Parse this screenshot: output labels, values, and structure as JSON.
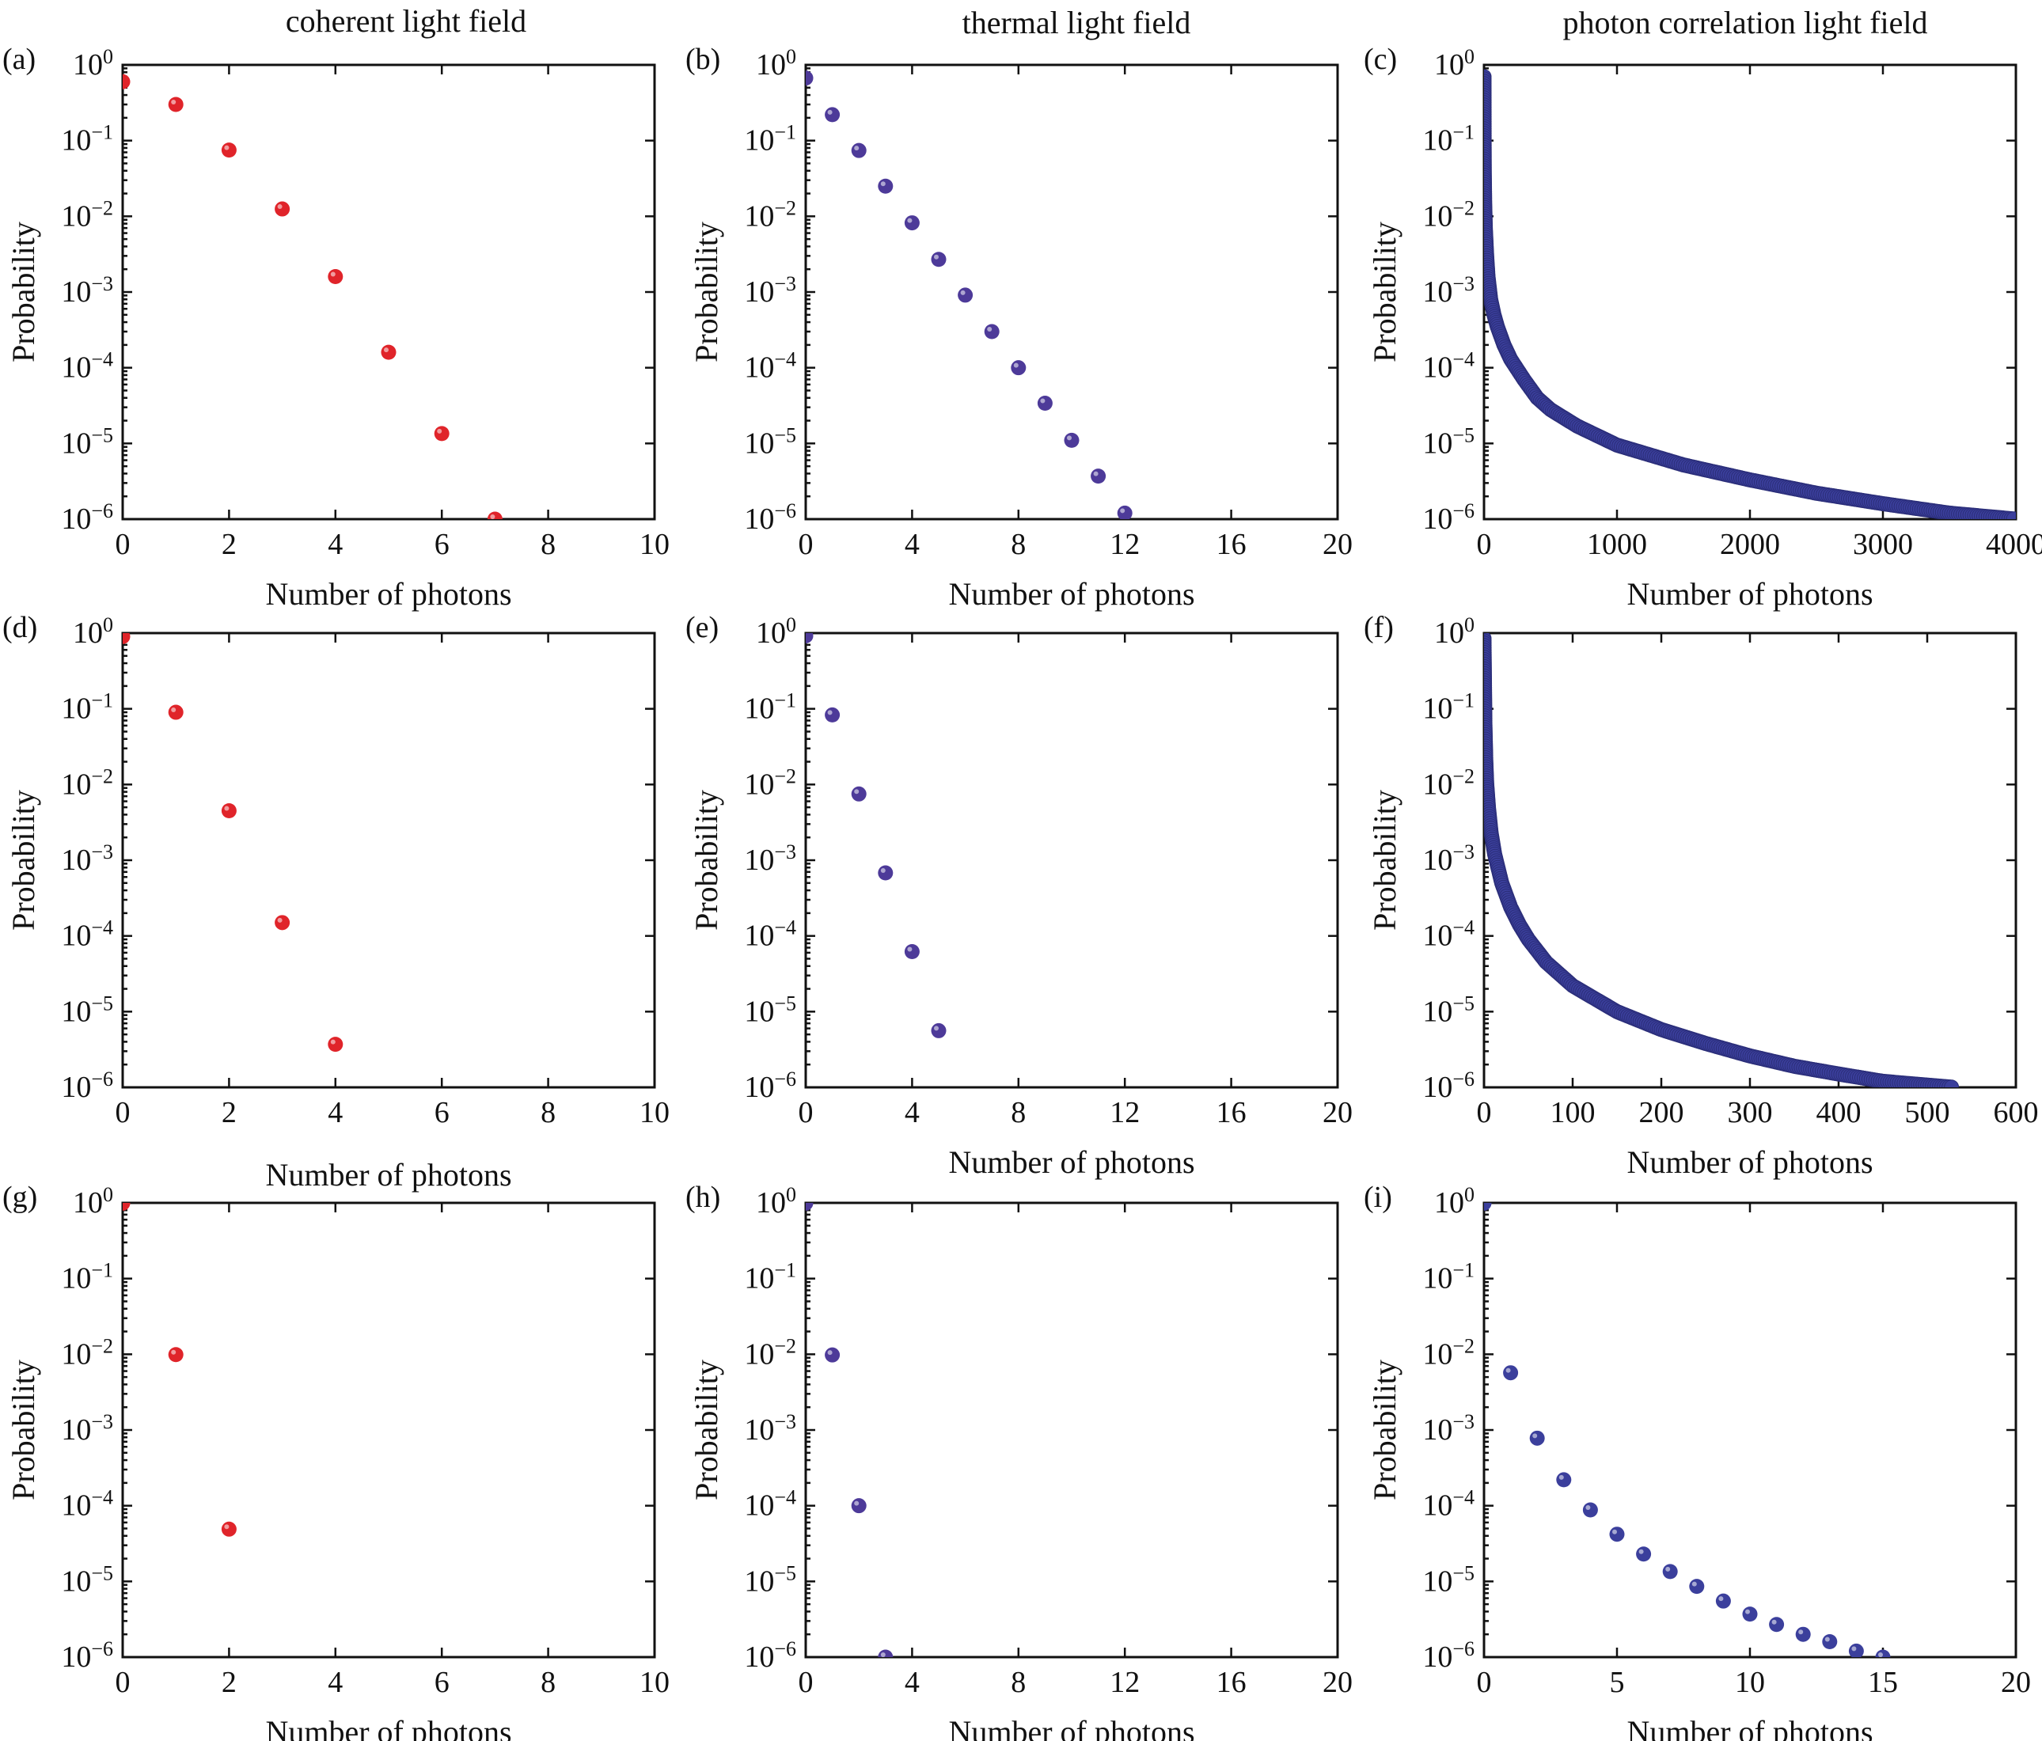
{
  "figure": {
    "column_titles": [
      "coherent light field",
      "thermal light field",
      "photon correlation light field"
    ],
    "colors": {
      "coherent": "#e0242a",
      "thermal": "#4d3a99",
      "correlation": "#3b3f9c"
    }
  },
  "chart_data": [
    {
      "id": "a",
      "label": "(a)",
      "type": "scatter",
      "color": "#e0242a",
      "xlabel": "Number of photons",
      "ylabel": "Probability",
      "xlim": [
        0,
        10
      ],
      "xticks": [
        0,
        2,
        4,
        6,
        8,
        10
      ],
      "ylim_exp": [
        -6,
        0
      ],
      "points": [
        [
          0,
          0.6
        ],
        [
          1,
          0.3
        ],
        [
          2,
          0.075
        ],
        [
          3,
          0.0125
        ],
        [
          4,
          0.0016
        ],
        [
          5,
          0.00016
        ],
        [
          6,
          1.35e-05
        ],
        [
          7,
          1e-06
        ]
      ]
    },
    {
      "id": "b",
      "label": "(b)",
      "type": "scatter",
      "color": "#4d3a99",
      "xlabel": "Number of photons",
      "ylabel": "Probability",
      "xlim": [
        0,
        20
      ],
      "xticks": [
        0,
        4,
        8,
        12,
        16,
        20
      ],
      "ylim_exp": [
        -6,
        0
      ],
      "points": [
        [
          0,
          0.67
        ],
        [
          1,
          0.22
        ],
        [
          2,
          0.074
        ],
        [
          3,
          0.025
        ],
        [
          4,
          0.0082
        ],
        [
          5,
          0.0027
        ],
        [
          6,
          0.00091
        ],
        [
          7,
          0.0003
        ],
        [
          8,
          0.0001
        ],
        [
          9,
          3.4e-05
        ],
        [
          10,
          1.1e-05
        ],
        [
          11,
          3.7e-06
        ],
        [
          12,
          1.2e-06
        ]
      ]
    },
    {
      "id": "c",
      "label": "(c)",
      "type": "scatter",
      "color": "#3b3f9c",
      "xlabel": "Number of photons",
      "ylabel": "Probability",
      "xlim": [
        0,
        4000
      ],
      "xticks": [
        0,
        1000,
        2000,
        3000,
        4000
      ],
      "ylim_exp": [
        -6,
        0
      ],
      "points": [
        [
          0,
          0.7
        ],
        [
          1,
          0.1
        ],
        [
          2,
          0.04
        ],
        [
          5,
          0.015
        ],
        [
          10,
          0.007
        ],
        [
          20,
          0.003
        ],
        [
          30,
          0.0016
        ],
        [
          50,
          0.0008
        ],
        [
          75,
          0.0005
        ],
        [
          100,
          0.00035
        ],
        [
          150,
          0.0002
        ],
        [
          200,
          0.00013
        ],
        [
          300,
          7e-05
        ],
        [
          400,
          4e-05
        ],
        [
          500,
          2.8e-05
        ],
        [
          700,
          1.7e-05
        ],
        [
          1000,
          9.5e-06
        ],
        [
          1500,
          5.2e-06
        ],
        [
          2000,
          3.3e-06
        ],
        [
          2500,
          2.2e-06
        ],
        [
          3000,
          1.6e-06
        ],
        [
          3500,
          1.2e-06
        ],
        [
          4000,
          1e-06
        ]
      ]
    },
    {
      "id": "d",
      "label": "(d)",
      "type": "scatter",
      "color": "#e0242a",
      "xlabel": "",
      "ylabel": "Probability",
      "xlim": [
        0,
        10
      ],
      "xticks": [
        0,
        2,
        4,
        6,
        8,
        10
      ],
      "ylim_exp": [
        -6,
        0
      ],
      "points": [
        [
          0,
          0.9
        ],
        [
          1,
          0.09
        ],
        [
          2,
          0.0045
        ],
        [
          3,
          0.00015
        ],
        [
          4,
          3.7e-06
        ]
      ]
    },
    {
      "id": "e",
      "label": "(e)",
      "type": "scatter",
      "color": "#4d3a99",
      "xlabel": "Number of photons",
      "ylabel": "Probability",
      "xlim": [
        0,
        20
      ],
      "xticks": [
        0,
        4,
        8,
        12,
        16,
        20
      ],
      "ylim_exp": [
        -6,
        0
      ],
      "points": [
        [
          0,
          0.92
        ],
        [
          1,
          0.083
        ],
        [
          2,
          0.0075
        ],
        [
          3,
          0.00068
        ],
        [
          4,
          6.2e-05
        ],
        [
          5,
          5.6e-06
        ]
      ]
    },
    {
      "id": "f",
      "label": "(f)",
      "type": "scatter",
      "color": "#3b3f9c",
      "xlabel": "Number of photons",
      "ylabel": "Probability",
      "xlim": [
        0,
        600
      ],
      "xticks": [
        0,
        100,
        200,
        300,
        400,
        500,
        600
      ],
      "ylim_exp": [
        -6,
        0
      ],
      "points": [
        [
          0,
          0.85
        ],
        [
          1,
          0.065
        ],
        [
          2,
          0.021
        ],
        [
          3,
          0.0105
        ],
        [
          5,
          0.005
        ],
        [
          8,
          0.0023
        ],
        [
          12,
          0.0012
        ],
        [
          20,
          0.0005
        ],
        [
          30,
          0.00024
        ],
        [
          40,
          0.00014
        ],
        [
          50,
          9e-05
        ],
        [
          70,
          4.5e-05
        ],
        [
          100,
          2.2e-05
        ],
        [
          150,
          1e-05
        ],
        [
          200,
          5.8e-06
        ],
        [
          250,
          3.8e-06
        ],
        [
          300,
          2.6e-06
        ],
        [
          350,
          1.9e-06
        ],
        [
          400,
          1.5e-06
        ],
        [
          450,
          1.2e-06
        ],
        [
          530,
          1e-06
        ]
      ]
    },
    {
      "id": "g",
      "label": "(g)",
      "type": "scatter",
      "color": "#e0242a",
      "xlabel": "Number of photons",
      "ylabel": "Probability",
      "title": "Number of photons",
      "xlim": [
        0,
        10
      ],
      "xticks": [
        0,
        2,
        4,
        6,
        8,
        10
      ],
      "ylim_exp": [
        -6,
        0
      ],
      "points": [
        [
          0,
          0.99
        ],
        [
          1,
          0.0099
        ],
        [
          2,
          4.9e-05
        ]
      ]
    },
    {
      "id": "h",
      "label": "(h)",
      "type": "scatter",
      "color": "#4d3a99",
      "xlabel": "Number of photons",
      "ylabel": "Probability",
      "xlim": [
        0,
        20
      ],
      "xticks": [
        0,
        4,
        8,
        12,
        16,
        20
      ],
      "ylim_exp": [
        -6,
        0
      ],
      "points": [
        [
          0,
          0.99
        ],
        [
          1,
          0.0098
        ],
        [
          2,
          0.0001
        ],
        [
          3,
          1e-06
        ]
      ]
    },
    {
      "id": "i",
      "label": "(i)",
      "type": "scatter",
      "color": "#3b3f9c",
      "xlabel": "Number of photons",
      "ylabel": "Probability",
      "xlim": [
        0,
        20
      ],
      "xticks": [
        0,
        5,
        10,
        15,
        20
      ],
      "ylim_exp": [
        -6,
        0
      ],
      "points": [
        [
          0,
          0.99
        ],
        [
          1,
          0.0057
        ],
        [
          2,
          0.00078
        ],
        [
          3,
          0.00022
        ],
        [
          4,
          8.8e-05
        ],
        [
          5,
          4.2e-05
        ],
        [
          6,
          2.3e-05
        ],
        [
          7,
          1.35e-05
        ],
        [
          8,
          8.6e-06
        ],
        [
          9,
          5.5e-06
        ],
        [
          10,
          3.7e-06
        ],
        [
          11,
          2.7e-06
        ],
        [
          12,
          2e-06
        ],
        [
          13,
          1.6e-06
        ],
        [
          14,
          1.2e-06
        ],
        [
          15,
          1e-06
        ]
      ]
    }
  ]
}
